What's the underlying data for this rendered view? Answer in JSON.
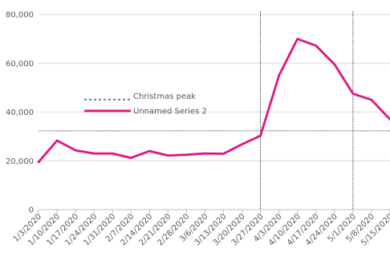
{
  "chart_data": {
    "type": "line",
    "x": [
      "1/3/2020",
      "1/10/2020",
      "1/17/2020",
      "1/24/2020",
      "1/31/2020",
      "2/7/2020",
      "2/14/2020",
      "2/21/2020",
      "2/28/2020",
      "3/6/2020",
      "3/13/2020",
      "3/20/2020",
      "3/27/2020",
      "4/3/2020",
      "4/10/2020",
      "4/17/2020",
      "4/24/2020",
      "5/1/2020",
      "5/8/2020",
      "5/15/2020"
    ],
    "series": [
      {
        "name": "Unnamed Series 2",
        "color": "#e0157f",
        "values": [
          19500,
          28300,
          24300,
          23000,
          23000,
          21200,
          24000,
          22200,
          22500,
          23000,
          22900,
          26800,
          30300,
          55000,
          70000,
          67200,
          59600,
          47500,
          45000,
          37000
        ]
      }
    ],
    "reference_lines": [
      {
        "name": "Christmas peak",
        "axis": "y",
        "value": 32300,
        "style": "dotted",
        "color": "#000000"
      },
      {
        "axis": "x",
        "value": "3/27/2020",
        "style": "dotted",
        "color": "#000000"
      },
      {
        "axis": "x",
        "value": "5/1/2020",
        "style": "dotted",
        "color": "#000000"
      }
    ],
    "yticks": [
      "0",
      "20,000",
      "40,000",
      "60,000",
      "80,000"
    ],
    "ylim": [
      0,
      80000
    ],
    "grid": "horizontal",
    "legend_position": "inside-left",
    "title": "",
    "xlabel": "",
    "ylabel": ""
  }
}
